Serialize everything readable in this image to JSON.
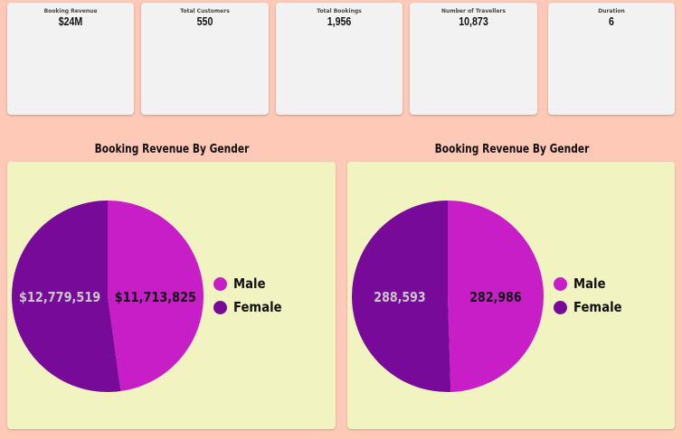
{
  "kpis": [
    {
      "label": "Booking Revenue",
      "value": "$24M"
    },
    {
      "label": "Total Customers",
      "value": "550"
    },
    {
      "label": "Total Bookings",
      "value": "1,956"
    },
    {
      "label": "Number of Travellers",
      "value": "10,873"
    },
    {
      "label": "Duration",
      "value": "6"
    }
  ],
  "colors": {
    "male": "#c81ec8",
    "female": "#780a99",
    "page_bg": "#ffc9b8",
    "panel_bg": "#f1f4c1",
    "label_on_male": "#111111",
    "label_on_female": "#c8c8c8"
  },
  "chart_data": [
    {
      "type": "pie",
      "title": "Booking Revenue By Gender",
      "slices": [
        {
          "name": "Male",
          "value": 11713825,
          "label": "$11,713,825"
        },
        {
          "name": "Female",
          "value": 12779519,
          "label": "$12,779,519"
        }
      ],
      "legend": [
        "Male",
        "Female"
      ],
      "legend_position": "right"
    },
    {
      "type": "pie",
      "title": "Booking Revenue By Gender",
      "slices": [
        {
          "name": "Male",
          "value": 282986,
          "label": "282,986"
        },
        {
          "name": "Female",
          "value": 288593,
          "label": "288,593"
        }
      ],
      "legend": [
        "Male",
        "Female"
      ],
      "legend_position": "right"
    }
  ]
}
